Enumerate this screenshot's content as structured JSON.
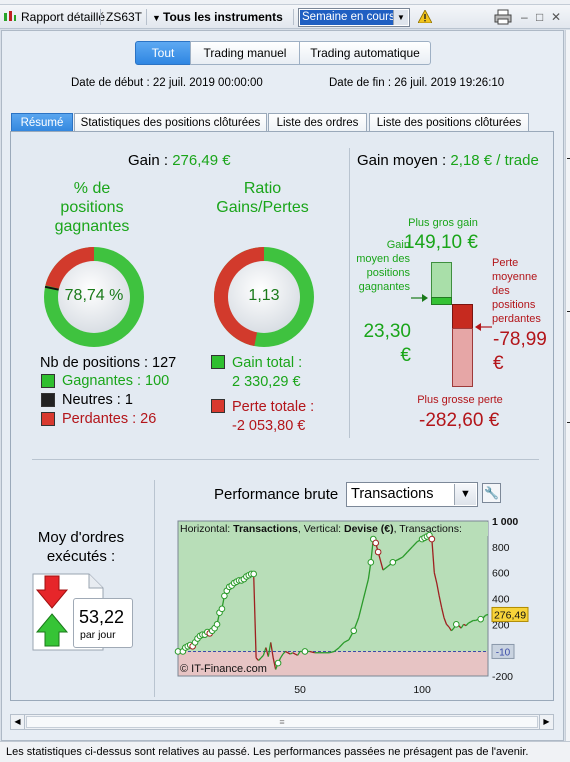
{
  "titlebar": {
    "report_label": "Rapport détaillé",
    "account": "ZS63T",
    "instruments": "Tous les instruments",
    "period": "Semaine en cours"
  },
  "mode_tabs": [
    "Tout",
    "Trading manuel",
    "Trading automatique"
  ],
  "dates": {
    "start": "Date de début : 22 juil. 2019 00:00:00",
    "end": "Date de fin : 26 juil. 2019 19:26:10"
  },
  "tabs": [
    "Résumé",
    "Statistiques des positions clôturées",
    "Liste des ordres",
    "Liste des positions clôturées"
  ],
  "summary": {
    "gain_label": "Gain :",
    "gain_value": "276,49 €",
    "avg_gain_label": "Gain moyen :",
    "avg_gain_value": "2,18 € / trade",
    "pct_title_1": "% de",
    "pct_title_2": "positions",
    "pct_title_3": "gagnantes",
    "pct_value": "78,74 %",
    "pct_fraction": 0.7874,
    "ratio_title_1": "Ratio",
    "ratio_title_2": "Gains/Pertes",
    "ratio_value": "1,13",
    "ratio_fraction": 0.531,
    "nb_positions": "Nb de positions : 127",
    "winners": "Gagnantes : 100",
    "neutral": "Neutres : 1",
    "losers": "Perdantes : 26",
    "total_gain_label": "Gain total :",
    "total_gain_value": "2 330,29 €",
    "total_loss_label": "Perte totale :",
    "total_loss_value": "-2 053,80 €",
    "biggest_gain_label": "Plus gros gain",
    "biggest_gain_value": "149,10 €",
    "avg_win_label_1": "Gain",
    "avg_win_label_2": "moyen des",
    "avg_win_label_3": "positions",
    "avg_win_label_4": "gagnantes",
    "avg_win_value_1": "23,30",
    "avg_win_value_2": "€",
    "avg_loss_label_1": "Perte",
    "avg_loss_label_2": "moyenne",
    "avg_loss_label_3": "des",
    "avg_loss_label_4": "positions",
    "avg_loss_label_5": "perdantes",
    "avg_loss_value_1": "-78,99",
    "avg_loss_value_2": "€",
    "biggest_loss_label": "Plus grosse perte",
    "biggest_loss_value": "-282,60 €",
    "avg_orders_label_1": "Moy d'ordres",
    "avg_orders_label_2": "exécutés :",
    "avg_orders_value": "53,22",
    "avg_orders_unit": "par jour"
  },
  "performance": {
    "title": "Performance brute",
    "dropdown_value": "Transactions",
    "chart_header_1": "Horizontal: ",
    "chart_header_2": "Transactions",
    "chart_header_3": ", Vertical: ",
    "chart_header_4": "Devise (€)",
    "chart_header_5": ", Transactions: ",
    "copyright": "© IT-Finance.com",
    "last_value_label": "276,49",
    "zero_label": "-10"
  },
  "chart_data": {
    "type": "line",
    "x": [
      0,
      2,
      3,
      4,
      5,
      6,
      7,
      8,
      9,
      10,
      11,
      12,
      13,
      14,
      15,
      16,
      17,
      18,
      19,
      20,
      21,
      22,
      23,
      24,
      25,
      26,
      27,
      28,
      29,
      30,
      31,
      32,
      33,
      34,
      35,
      36,
      37,
      38,
      39,
      40,
      41,
      42,
      43,
      44,
      45,
      46,
      47,
      48,
      49,
      50,
      52,
      54,
      56,
      58,
      60,
      62,
      64,
      66,
      68,
      70,
      72,
      74,
      76,
      78,
      79,
      80,
      81,
      82,
      84,
      86,
      88,
      90,
      92,
      94,
      96,
      98,
      100,
      101,
      102,
      103,
      104,
      105,
      106,
      107,
      108,
      109,
      110,
      111,
      112,
      113,
      114,
      115,
      116,
      117,
      118,
      119,
      120,
      121,
      122,
      123,
      124,
      125,
      126,
      127
    ],
    "y": [
      -10,
      -10,
      20,
      30,
      40,
      30,
      60,
      90,
      110,
      120,
      120,
      140,
      130,
      150,
      170,
      200,
      290,
      320,
      420,
      460,
      490,
      500,
      520,
      530,
      540,
      540,
      550,
      570,
      580,
      590,
      590,
      -60,
      -80,
      -60,
      -40,
      20,
      -50,
      60,
      -60,
      -150,
      -100,
      -60,
      -30,
      -10,
      -20,
      -30,
      -20,
      -30,
      -40,
      -10,
      -10,
      -10,
      -20,
      -20,
      -20,
      -20,
      -10,
      20,
      60,
      80,
      150,
      250,
      400,
      550,
      680,
      860,
      830,
      760,
      620,
      650,
      680,
      700,
      720,
      760,
      800,
      840,
      860,
      870,
      880,
      890,
      860,
      600,
      520,
      420,
      330,
      250,
      200,
      180,
      150,
      170,
      200,
      190,
      170,
      200,
      190,
      210,
      220,
      230,
      230,
      240,
      240,
      250,
      270,
      276.49
    ],
    "xlim": [
      0,
      127
    ],
    "ylim": [
      -200,
      1000
    ],
    "x_ticks": [
      50,
      100
    ],
    "y_ticks": [
      1000,
      800,
      600,
      400,
      200,
      0,
      -200
    ],
    "y_tick_labels": [
      "1 000",
      "800",
      "600",
      "400",
      "200",
      "0",
      "-200"
    ],
    "title": "Performance brute",
    "xlabel": "Transactions",
    "ylabel": "Devise (€)",
    "grid": false,
    "colors": {
      "gain": "#2a9a2a",
      "loss": "#9e2020",
      "positive_fill": "#b8deb8",
      "negative_fill": "#e7c4c4"
    }
  },
  "footer": {
    "disclaimer": "Les statistiques ci-dessus sont relatives au passé. Les performances passées ne présagent pas de l'avenir."
  },
  "colors": {
    "accent": "#2f86e2",
    "green": "#1aa51a",
    "red": "#b3151a"
  }
}
